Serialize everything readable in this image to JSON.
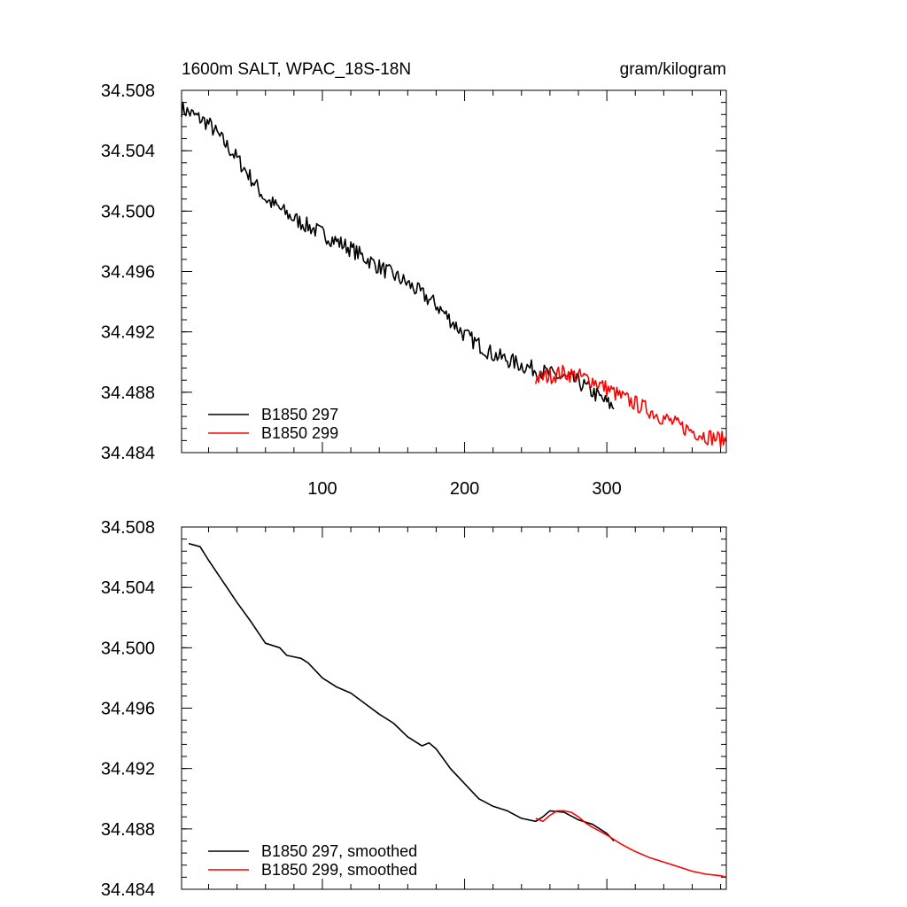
{
  "chart_data": [
    {
      "type": "line",
      "title": "1600m SALT, WPAC_18S-18N",
      "units": "gram/kilogram",
      "xlim": [
        1,
        384
      ],
      "ylim": [
        34.484,
        34.508
      ],
      "x_ticks": [
        100,
        200,
        300
      ],
      "x_tick_labels": [
        "100",
        "200",
        "300"
      ],
      "y_ticks": [
        34.508,
        34.504,
        34.5,
        34.496,
        34.492,
        34.488,
        34.484
      ],
      "y_tick_labels": [
        "34.508",
        "34.504",
        "34.500",
        "34.496",
        "34.492",
        "34.488",
        "34.484"
      ],
      "legend": [
        "B1850 297",
        "B1850 299"
      ],
      "legend_position": "bottom-left",
      "series": [
        {
          "name": "B1850 297",
          "color": "#000000",
          "noisy": true,
          "x": [
            1,
            20,
            40,
            60,
            80,
            100,
            120,
            140,
            160,
            180,
            200,
            220,
            240,
            260,
            280,
            300,
            305
          ],
          "values": [
            34.5068,
            34.5058,
            34.5035,
            34.5008,
            34.4995,
            34.4985,
            34.4975,
            34.4963,
            34.4952,
            34.4938,
            34.4918,
            34.4905,
            34.4898,
            34.4892,
            34.4887,
            34.4873,
            34.487
          ]
        },
        {
          "name": "B1850 299",
          "color": "#ff0000",
          "noisy": true,
          "x": [
            250,
            270,
            290,
            310,
            330,
            350,
            370,
            384
          ],
          "values": [
            34.4889,
            34.4893,
            34.4888,
            34.4877,
            34.4868,
            34.4858,
            34.4851,
            34.4848
          ]
        }
      ]
    },
    {
      "type": "line",
      "xlim": [
        1,
        384
      ],
      "ylim": [
        34.484,
        34.508
      ],
      "y_ticks": [
        34.508,
        34.504,
        34.5,
        34.496,
        34.492,
        34.488,
        34.484
      ],
      "y_tick_labels": [
        "34.508",
        "34.504",
        "34.500",
        "34.496",
        "34.492",
        "34.488",
        "34.484"
      ],
      "legend": [
        "B1850 297, smoothed",
        "B1850 299, smoothed"
      ],
      "legend_position": "bottom-left",
      "series": [
        {
          "name": "B1850 297, smoothed",
          "color": "#000000",
          "noisy": false,
          "x": [
            6,
            14,
            20,
            30,
            40,
            50,
            60,
            70,
            75,
            80,
            85,
            90,
            100,
            110,
            120,
            130,
            140,
            150,
            160,
            170,
            175,
            180,
            190,
            200,
            210,
            220,
            230,
            240,
            250,
            255,
            260,
            270,
            280,
            290,
            300,
            305
          ],
          "values": [
            34.5069,
            34.5067,
            34.5058,
            34.5044,
            34.503,
            34.5017,
            34.5003,
            34.5,
            34.4995,
            34.4994,
            34.4993,
            34.499,
            34.498,
            34.4974,
            34.497,
            34.4963,
            34.4956,
            34.495,
            34.4941,
            34.4935,
            34.4937,
            34.4933,
            34.492,
            34.491,
            34.49,
            34.4895,
            34.4892,
            34.4887,
            34.4885,
            34.4888,
            34.4892,
            34.4891,
            34.4886,
            34.4883,
            34.4877,
            34.4872
          ]
        },
        {
          "name": "B1850 299, smoothed",
          "color": "#ff0000",
          "noisy": false,
          "x": [
            250,
            255,
            260,
            265,
            270,
            275,
            280,
            285,
            290,
            300,
            310,
            320,
            330,
            340,
            350,
            360,
            370,
            380,
            384
          ],
          "values": [
            34.4887,
            34.4885,
            34.4889,
            34.4892,
            34.4892,
            34.4891,
            34.4888,
            34.4884,
            34.4881,
            34.4876,
            34.487,
            34.4865,
            34.4861,
            34.4858,
            34.4855,
            34.4852,
            34.485,
            34.4849,
            34.4848
          ]
        }
      ]
    }
  ]
}
